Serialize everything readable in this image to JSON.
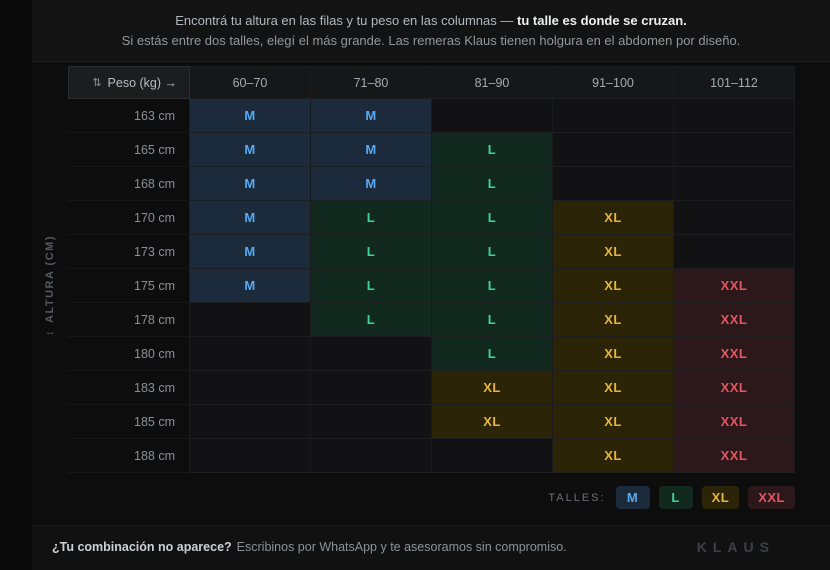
{
  "header": {
    "line1_normal": "Encontrá tu altura en las filas y tu peso en las columnas — ",
    "line1_bold": "tu talle es donde se cruzan.",
    "line2": "Si estás entre dos talles, elegí el más grande. Las remeras Klaus tienen holgura en el abdomen por diseño."
  },
  "table": {
    "corner_icon": "⇅",
    "corner_label": "Peso (kg) →",
    "weight_columns": [
      "60–70",
      "71–80",
      "81–90",
      "91–100",
      "101–112"
    ],
    "axis_icon": "↕",
    "axis_label": "ALTURA (CM)",
    "rows": [
      {
        "height": "163 cm",
        "sizes": [
          "M",
          "M",
          "",
          "",
          ""
        ]
      },
      {
        "height": "165 cm",
        "sizes": [
          "M",
          "M",
          "L",
          "",
          ""
        ]
      },
      {
        "height": "168 cm",
        "sizes": [
          "M",
          "M",
          "L",
          "",
          ""
        ]
      },
      {
        "height": "170 cm",
        "sizes": [
          "M",
          "L",
          "L",
          "XL",
          ""
        ]
      },
      {
        "height": "173 cm",
        "sizes": [
          "M",
          "L",
          "L",
          "XL",
          ""
        ]
      },
      {
        "height": "175 cm",
        "sizes": [
          "M",
          "L",
          "L",
          "XL",
          "XXL"
        ]
      },
      {
        "height": "178 cm",
        "sizes": [
          "",
          "L",
          "L",
          "XL",
          "XXL"
        ]
      },
      {
        "height": "180 cm",
        "sizes": [
          "",
          "",
          "L",
          "XL",
          "XXL"
        ]
      },
      {
        "height": "183 cm",
        "sizes": [
          "",
          "",
          "XL",
          "XL",
          "XXL"
        ]
      },
      {
        "height": "185 cm",
        "sizes": [
          "",
          "",
          "XL",
          "XL",
          "XXL"
        ]
      },
      {
        "height": "188 cm",
        "sizes": [
          "",
          "",
          "",
          "XL",
          "XXL"
        ]
      }
    ]
  },
  "size_colors": {
    "M": {
      "text": "#57a9f2",
      "bg": "#1c2b3c"
    },
    "L": {
      "text": "#3dd598",
      "bg": "#12291f"
    },
    "XL": {
      "text": "#e7b43c",
      "bg": "#2b2407"
    },
    "XXL": {
      "text": "#e35763",
      "bg": "#2c171b"
    }
  },
  "legend": {
    "label": "TALLES:",
    "items": [
      "M",
      "L",
      "XL",
      "XXL"
    ]
  },
  "footer": {
    "question": "¿Tu combinación no aparece?",
    "cta": "Escribinos por WhatsApp y te asesoramos sin compromiso.",
    "brand": "KLAUS"
  }
}
